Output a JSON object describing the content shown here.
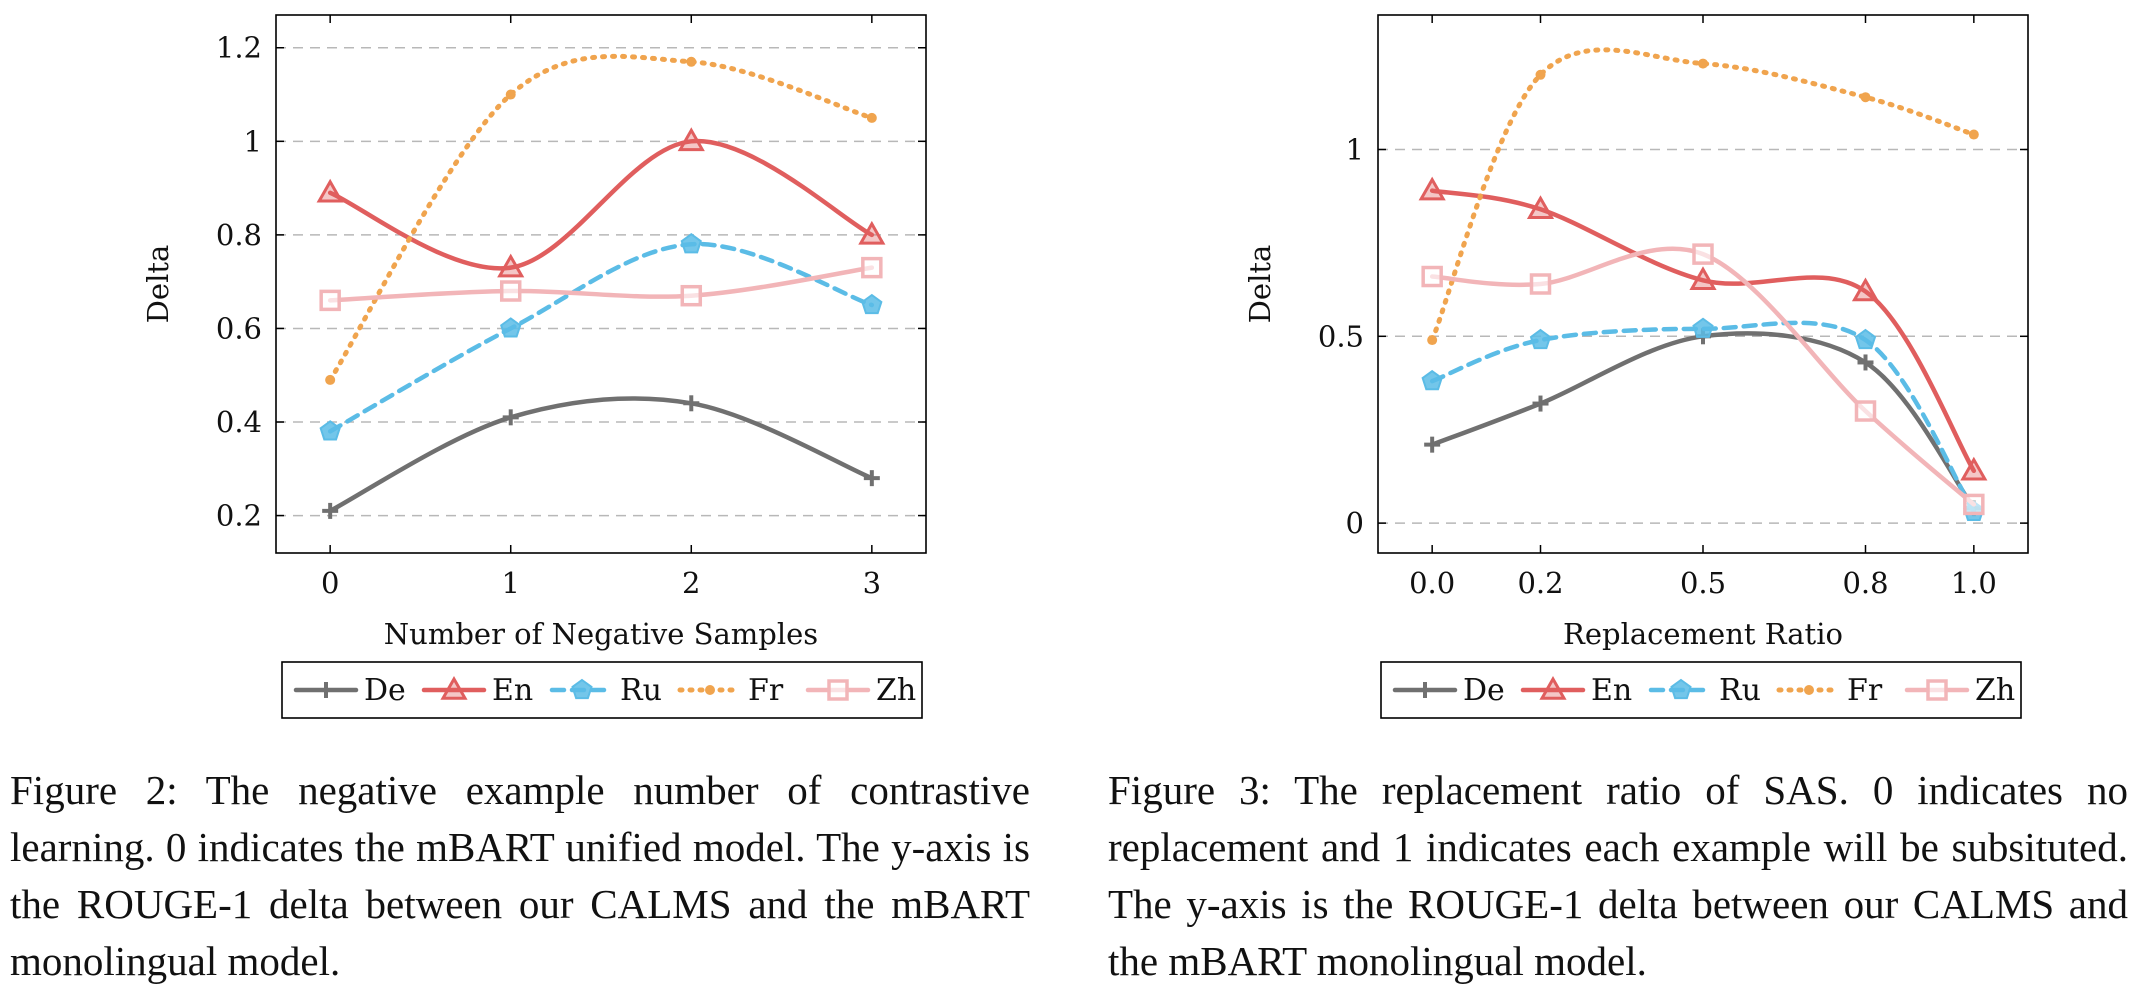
{
  "colors": {
    "De": "#707070",
    "En": "#e05e5e",
    "Ru": "#5bbce6",
    "Fr": "#f0a44e",
    "Zh": "#f2b5b8",
    "grid": "#b8b8b8",
    "axis": "#000000"
  },
  "figures": [
    {
      "caption": "Figure 2: The negative example number of contrastive learning. 0 indicates the mBART unified model. The y-axis is the ROUGE-1 delta between our CALMS and the mBART monolingual model."
    },
    {
      "caption": "Figure 3: The replacement ratio of SAS. 0 indicates no replacement and 1 indicates each example will be subsituted. The y-axis is the ROUGE-1 delta between our CALMS and the mBART monolingual model."
    }
  ],
  "chart_data": [
    {
      "type": "line",
      "xlabel": "Number of Negative Samples",
      "ylabel": "Delta",
      "x": [
        0,
        1,
        2,
        3
      ],
      "x_tick_labels": [
        "0",
        "1",
        "2",
        "3"
      ],
      "xlim": [
        -0.3,
        3.3
      ],
      "ylim": [
        0.12,
        1.27
      ],
      "y_ticks": [
        0.2,
        0.4,
        0.6,
        0.8,
        1.0,
        1.2
      ],
      "y_tick_labels": [
        "0.2",
        "0.4",
        "0.6",
        "0.8",
        "1",
        "1.2"
      ],
      "grid": "horizontal dashed",
      "legend_position": "below",
      "series": [
        {
          "name": "De",
          "marker": "plus",
          "dash": "solid",
          "values": [
            0.21,
            0.41,
            0.44,
            0.28
          ]
        },
        {
          "name": "En",
          "marker": "triangle",
          "dash": "solid",
          "values": [
            0.89,
            0.73,
            1.0,
            0.8
          ]
        },
        {
          "name": "Ru",
          "marker": "pentagon",
          "dash": "dashed",
          "values": [
            0.38,
            0.6,
            0.78,
            0.65
          ]
        },
        {
          "name": "Fr",
          "marker": "dot",
          "dash": "dotted",
          "values": [
            0.49,
            1.1,
            1.17,
            1.05
          ]
        },
        {
          "name": "Zh",
          "marker": "square",
          "dash": "solid",
          "values": [
            0.66,
            0.68,
            0.67,
            0.73
          ]
        }
      ]
    },
    {
      "type": "line",
      "xlabel": "Replacement Ratio",
      "ylabel": "Delta",
      "x": [
        0.0,
        0.2,
        0.5,
        0.8,
        1.0
      ],
      "x_tick_labels": [
        "0.0",
        "0.2",
        "0.5",
        "0.8",
        "1.0"
      ],
      "xlim": [
        -0.1,
        1.1
      ],
      "ylim": [
        -0.08,
        1.36
      ],
      "y_ticks": [
        0,
        0.5,
        1
      ],
      "y_tick_labels": [
        "0",
        "0.5",
        "1"
      ],
      "grid": "horizontal dashed",
      "legend_position": "below",
      "series": [
        {
          "name": "De",
          "marker": "plus",
          "dash": "solid",
          "values": [
            0.21,
            0.32,
            0.5,
            0.43,
            0.04
          ]
        },
        {
          "name": "En",
          "marker": "triangle",
          "dash": "solid",
          "values": [
            0.89,
            0.84,
            0.65,
            0.62,
            0.14
          ]
        },
        {
          "name": "Ru",
          "marker": "pentagon",
          "dash": "dashed",
          "values": [
            0.38,
            0.49,
            0.52,
            0.49,
            0.03
          ]
        },
        {
          "name": "Fr",
          "marker": "dot",
          "dash": "dotted",
          "values": [
            0.49,
            1.2,
            1.23,
            1.14,
            1.04
          ]
        },
        {
          "name": "Zh",
          "marker": "square",
          "dash": "solid",
          "values": [
            0.66,
            0.64,
            0.72,
            0.3,
            0.05
          ]
        }
      ]
    }
  ]
}
